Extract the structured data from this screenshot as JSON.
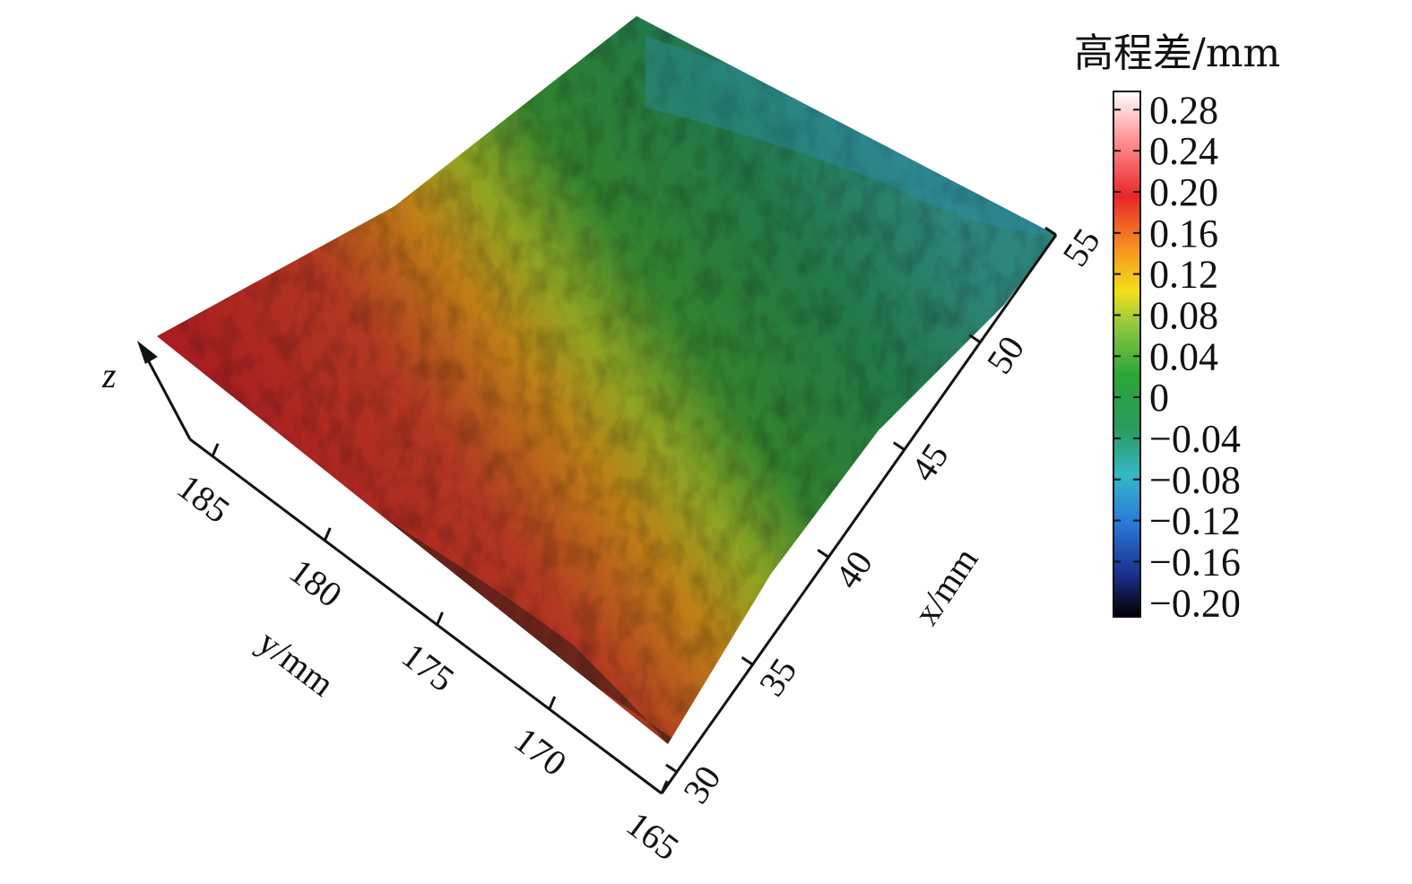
{
  "chart_data": {
    "type": "heatmap",
    "subtype": "3d-surface",
    "title": "",
    "x_axis": {
      "label": "x/mm",
      "range": [
        30,
        55
      ],
      "ticks": [
        30,
        35,
        40,
        45,
        50,
        55
      ],
      "tick_labels": [
        "30",
        "35",
        "40",
        "45",
        "50",
        "55"
      ]
    },
    "y_axis": {
      "label": "y/mm",
      "range": [
        165,
        186
      ],
      "ticks": [
        165,
        170,
        175,
        180,
        185
      ],
      "tick_labels": [
        "165",
        "170",
        "175",
        "180",
        "185"
      ]
    },
    "z_axis": {
      "label": "z"
    },
    "colorbar": {
      "title": "高程差/mm",
      "range": [
        -0.2,
        0.3
      ],
      "ticks": [
        0.28,
        0.24,
        0.2,
        0.16,
        0.12,
        0.08,
        0.04,
        0,
        -0.04,
        -0.08,
        -0.12,
        -0.16,
        -0.2
      ],
      "tick_labels": [
        "0.28",
        "0.24",
        "0.20",
        "0.16",
        "0.12",
        "0.08",
        "0.04",
        "0",
        "−0.04",
        "−0.08",
        "−0.12",
        "−0.16",
        "−0.20"
      ],
      "colors": [
        "#000000",
        "#1b2f8c",
        "#2a7ad8",
        "#34b8c4",
        "#2a9a5c",
        "#2aa637",
        "#8cc63f",
        "#f2e01c",
        "#f7941d",
        "#e8262a",
        "#ff8a8a",
        "#ffffff"
      ]
    },
    "surface_trend": "elevation highest (red, ~0.16–0.24 mm) near y=175–185, x=30–40; lowest (green/cyan, ~-0.04–0.04 mm) toward x=45–55"
  }
}
